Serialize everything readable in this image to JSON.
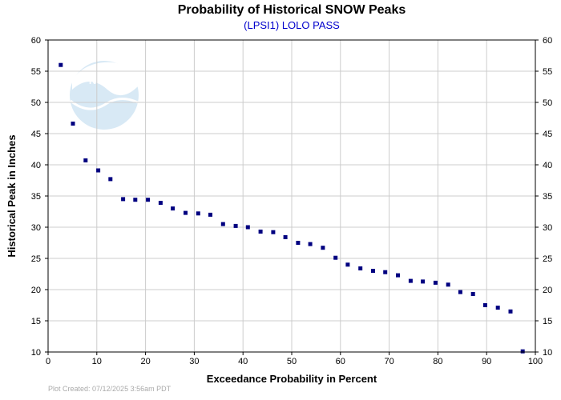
{
  "chart_data": {
    "type": "scatter",
    "title": "Probability of Historical SNOW Peaks",
    "subtitle": "(LPSI1) LOLO PASS",
    "xlabel": "Exceedance Probability in Percent",
    "ylabel": "Historical Peak in Inches",
    "xlim": [
      0,
      100
    ],
    "ylim": [
      10,
      60
    ],
    "xticks": [
      0,
      10,
      20,
      30,
      40,
      50,
      60,
      70,
      80,
      90,
      100
    ],
    "yticks": [
      10,
      15,
      20,
      25,
      30,
      35,
      40,
      45,
      50,
      55,
      60
    ],
    "grid": true,
    "footer": "Plot Created: 07/12/2025 3:56am PDT",
    "colors": {
      "title": "#000000",
      "subtitle": "#0000cc",
      "points": "#000080",
      "grid": "#cccccc",
      "footer": "#aaaaaa",
      "noaa_logo": "#b9d8ee"
    },
    "logo": "NOAA",
    "points": [
      {
        "x": 2.6,
        "y": 56.0
      },
      {
        "x": 5.1,
        "y": 46.6
      },
      {
        "x": 7.7,
        "y": 40.7
      },
      {
        "x": 10.3,
        "y": 39.1
      },
      {
        "x": 12.8,
        "y": 37.7
      },
      {
        "x": 15.4,
        "y": 34.5
      },
      {
        "x": 17.9,
        "y": 34.4
      },
      {
        "x": 20.5,
        "y": 34.4
      },
      {
        "x": 23.1,
        "y": 33.9
      },
      {
        "x": 25.6,
        "y": 33.0
      },
      {
        "x": 28.2,
        "y": 32.3
      },
      {
        "x": 30.8,
        "y": 32.2
      },
      {
        "x": 33.3,
        "y": 32.0
      },
      {
        "x": 35.9,
        "y": 30.5
      },
      {
        "x": 38.5,
        "y": 30.2
      },
      {
        "x": 41.0,
        "y": 30.0
      },
      {
        "x": 43.6,
        "y": 29.3
      },
      {
        "x": 46.2,
        "y": 29.2
      },
      {
        "x": 48.7,
        "y": 28.4
      },
      {
        "x": 51.3,
        "y": 27.5
      },
      {
        "x": 53.8,
        "y": 27.3
      },
      {
        "x": 56.4,
        "y": 26.7
      },
      {
        "x": 59.0,
        "y": 25.1
      },
      {
        "x": 61.5,
        "y": 24.0
      },
      {
        "x": 64.1,
        "y": 23.4
      },
      {
        "x": 66.7,
        "y": 23.0
      },
      {
        "x": 69.2,
        "y": 22.8
      },
      {
        "x": 71.8,
        "y": 22.3
      },
      {
        "x": 74.4,
        "y": 21.4
      },
      {
        "x": 76.9,
        "y": 21.3
      },
      {
        "x": 79.5,
        "y": 21.1
      },
      {
        "x": 82.1,
        "y": 20.8
      },
      {
        "x": 84.6,
        "y": 19.6
      },
      {
        "x": 87.2,
        "y": 19.3
      },
      {
        "x": 89.7,
        "y": 17.5
      },
      {
        "x": 92.3,
        "y": 17.1
      },
      {
        "x": 94.9,
        "y": 16.5
      },
      {
        "x": 97.4,
        "y": 10.1
      }
    ]
  }
}
